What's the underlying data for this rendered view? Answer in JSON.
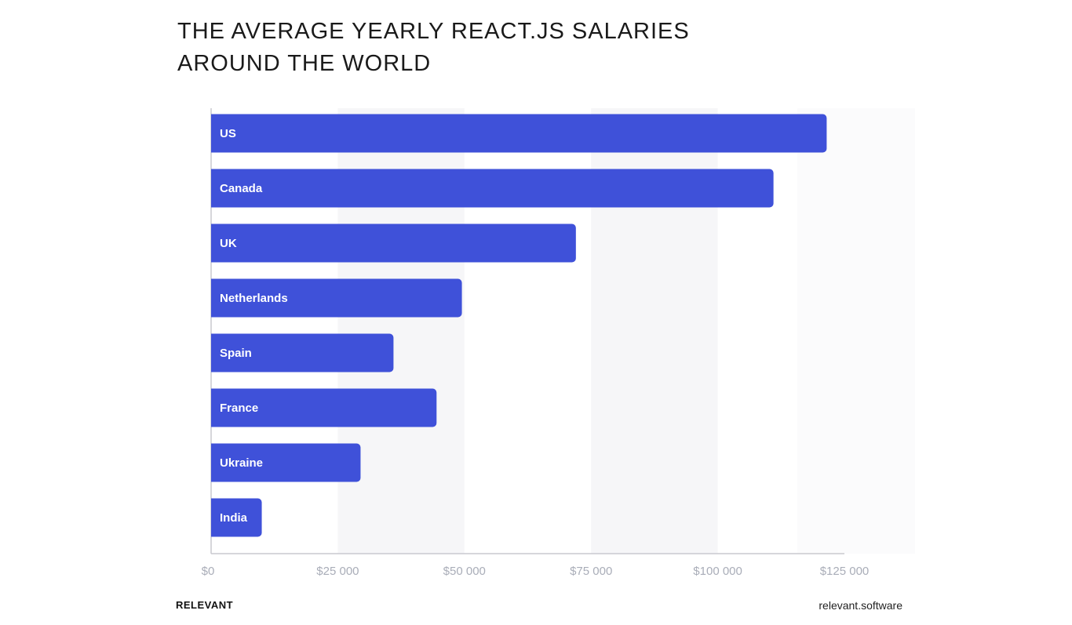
{
  "chart_data": {
    "type": "bar",
    "orientation": "horizontal",
    "title": "THE AVERAGE YEARLY REACT.JS SALARIES AROUND THE WORLD",
    "title_lines": [
      "THE AVERAGE YEARLY REACT.JS SALARIES",
      "AROUND THE WORLD"
    ],
    "categories": [
      "US",
      "Canada",
      "UK",
      "Netherlands",
      "Spain",
      "France",
      "Ukraine",
      "India"
    ],
    "values": [
      121500,
      111000,
      72000,
      49500,
      36000,
      44500,
      29500,
      10000
    ],
    "xlim": [
      0,
      125000
    ],
    "xticks": [
      0,
      25000,
      50000,
      75000,
      100000,
      125000
    ],
    "xtick_labels": [
      "$0",
      "$25 000",
      "$50 000",
      "$75 000",
      "$100 000",
      "$125 000"
    ],
    "bar_color": "#3f51d9",
    "alt_band_color": "#f6f6f8",
    "grid": false,
    "legend": "none"
  },
  "footer": {
    "brand": "RELEVANT",
    "url": "relevant.software"
  }
}
